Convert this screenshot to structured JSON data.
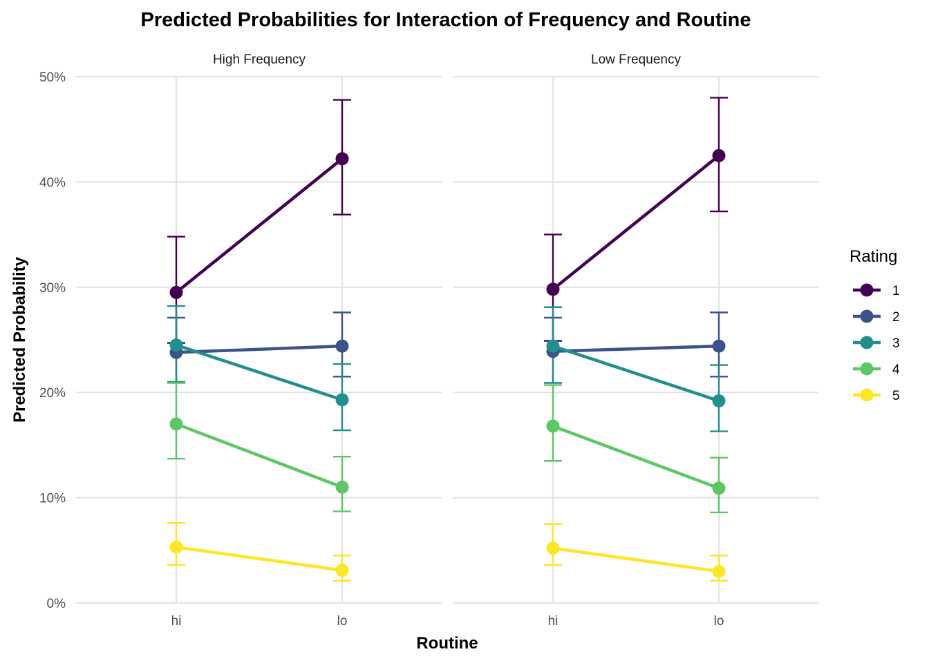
{
  "chart_data": {
    "type": "line",
    "title": "Predicted Probabilities for Interaction of Frequency and Routine",
    "xlabel": "Routine",
    "ylabel": "Predicted Probability",
    "categories": [
      "hi",
      "lo"
    ],
    "ylim": [
      0,
      0.5
    ],
    "yticks": [
      {
        "value": 0,
        "label": "0%"
      },
      {
        "value": 0.1,
        "label": "10%"
      },
      {
        "value": 0.2,
        "label": "20%"
      },
      {
        "value": 0.3,
        "label": "30%"
      },
      {
        "value": 0.4,
        "label": "40%"
      },
      {
        "value": 0.5,
        "label": "50%"
      }
    ],
    "grid": true,
    "legend": {
      "title": "Rating",
      "position": "right"
    },
    "panels": [
      {
        "name": "High Frequency",
        "series": [
          {
            "name": "1",
            "color": "#440154",
            "values": [
              0.295,
              0.422
            ],
            "lower": [
              0.247,
              0.369
            ],
            "upper": [
              0.348,
              0.478
            ]
          },
          {
            "name": "2",
            "color": "#3B528B",
            "values": [
              0.238,
              0.244
            ],
            "lower": [
              0.209,
              0.215
            ],
            "upper": [
              0.271,
              0.276
            ]
          },
          {
            "name": "3",
            "color": "#21908C",
            "values": [
              0.245,
              0.193
            ],
            "lower": [
              0.21,
              0.164
            ],
            "upper": [
              0.282,
              0.227
            ]
          },
          {
            "name": "4",
            "color": "#5DC863",
            "values": [
              0.17,
              0.11
            ],
            "lower": [
              0.137,
              0.087
            ],
            "upper": [
              0.209,
              0.139
            ]
          },
          {
            "name": "5",
            "color": "#FDE725",
            "values": [
              0.053,
              0.031
            ],
            "lower": [
              0.036,
              0.021
            ],
            "upper": [
              0.076,
              0.045
            ]
          }
        ]
      },
      {
        "name": "Low Frequency",
        "series": [
          {
            "name": "1",
            "color": "#440154",
            "values": [
              0.298,
              0.425
            ],
            "lower": [
              0.249,
              0.372
            ],
            "upper": [
              0.35,
              0.48
            ]
          },
          {
            "name": "2",
            "color": "#3B528B",
            "values": [
              0.239,
              0.244
            ],
            "lower": [
              0.209,
              0.215
            ],
            "upper": [
              0.271,
              0.276
            ]
          },
          {
            "name": "3",
            "color": "#21908C",
            "values": [
              0.244,
              0.192
            ],
            "lower": [
              0.209,
              0.163
            ],
            "upper": [
              0.281,
              0.226
            ]
          },
          {
            "name": "4",
            "color": "#5DC863",
            "values": [
              0.168,
              0.109
            ],
            "lower": [
              0.135,
              0.086
            ],
            "upper": [
              0.207,
              0.138
            ]
          },
          {
            "name": "5",
            "color": "#FDE725",
            "values": [
              0.052,
              0.03
            ],
            "lower": [
              0.036,
              0.021
            ],
            "upper": [
              0.075,
              0.045
            ]
          }
        ]
      }
    ]
  }
}
